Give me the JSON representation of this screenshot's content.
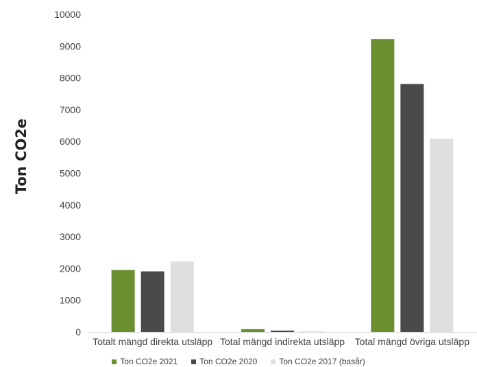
{
  "chart_data": {
    "type": "bar",
    "categories": [
      "Totalt mängd direkta utsläpp",
      "Total mängd indirekta utsläpp",
      "Total mängd övriga utsläpp"
    ],
    "series": [
      {
        "name": "Ton CO2e 2021",
        "color": "#6b8e2f",
        "values": [
          1950,
          90,
          9220
        ]
      },
      {
        "name": "Ton CO2e 2020",
        "color": "#4a4a4d",
        "values": [
          1910,
          45,
          7810
        ]
      },
      {
        "name": "Ton CO2e 2017 (basår)",
        "color": "#dedfe1",
        "values": [
          2220,
          20,
          6090
        ]
      }
    ],
    "ylabel": "Ton CO2e",
    "ylim": [
      0,
      10000
    ],
    "yticks": [
      "0",
      "1000",
      "2000",
      "3000",
      "4000",
      "5000",
      "6000",
      "7000",
      "8000",
      "9000",
      "10000"
    ],
    "grid": false,
    "legend": "bottom"
  }
}
